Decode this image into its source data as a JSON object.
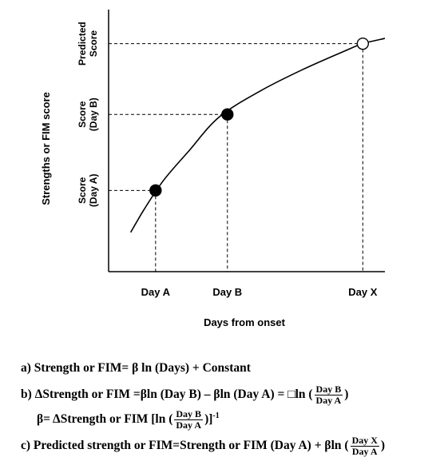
{
  "chart_data": {
    "type": "line",
    "title": "",
    "ylabel": "Strengths or FIM score",
    "xlabel": "Days from onset",
    "x_ticks": [
      "Day A",
      "Day B",
      "Day X"
    ],
    "y_ticks": [
      {
        "line1": "Score",
        "line2": "(Day A)"
      },
      {
        "line1": "Score",
        "line2": "(Day B)"
      },
      {
        "line1": "Predicted",
        "line2": "Score"
      }
    ],
    "axis_units_note": "no numeric scale is printed; values below are estimated fractions of the x and y axis lengths",
    "x_range": [
      0,
      1
    ],
    "y_range": [
      0,
      1
    ],
    "curve": {
      "shape": "logarithmic",
      "x": [
        0.08,
        0.13,
        0.2,
        0.29,
        0.4,
        0.55,
        0.7,
        0.85,
        0.92,
        1.0
      ],
      "y": [
        0.15,
        0.24,
        0.35,
        0.46,
        0.59,
        0.69,
        0.77,
        0.84,
        0.87,
        0.89
      ]
    },
    "points": [
      {
        "label": "Score (Day A)",
        "x": 0.17,
        "y": 0.31,
        "marker": "filled"
      },
      {
        "label": "Score (Day B)",
        "x": 0.43,
        "y": 0.6,
        "marker": "filled"
      },
      {
        "label": "Predicted Score",
        "x": 0.92,
        "y": 0.87,
        "marker": "open"
      }
    ],
    "grid": false,
    "legend": "none"
  },
  "equations": {
    "a_text": "a) Strength or FIM= β ln (Days) + Constant",
    "b_part1": "b) ΔStrength or FIM =βln (Day B) – βln (Day A) = □ln (",
    "b_frac_num": "Day B",
    "b_frac_den": "Day A",
    "b_part2": ")",
    "beta_part1": "β= ΔStrength or FIM [ln (",
    "beta_frac_num": "Day B",
    "beta_frac_den": "Day A",
    "beta_part2": ")]",
    "beta_exponent": "-1",
    "c_part1": "c) Predicted strength or FIM=Strength or FIM (Day A) + βln (",
    "c_frac_num": "Day X",
    "c_frac_den": "Day A",
    "c_part2": ")"
  }
}
